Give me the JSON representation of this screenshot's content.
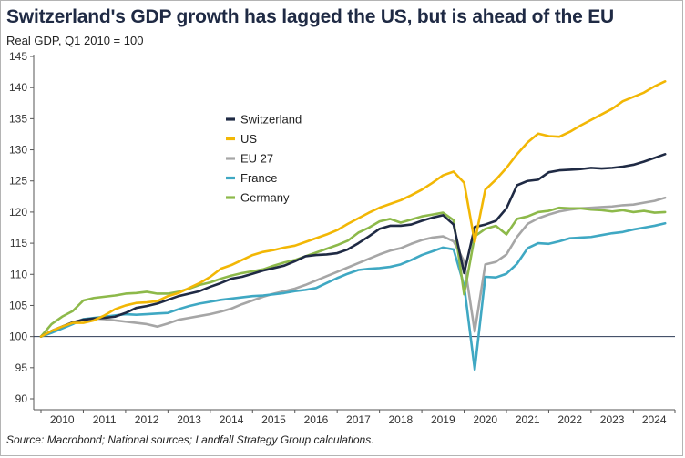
{
  "title": "Switzerland's GDP growth has lagged the US, but is ahead of the EU",
  "subtitle": "Real GDP, Q1 2010 = 100",
  "source": "Source: Macrobond; National sources; Landfall Strategy Group calculations.",
  "chart_data": {
    "type": "line",
    "title": "Switzerland's GDP growth has lagged the US, but is ahead of the EU",
    "ylabel": "Real GDP, Q1 2010 = 100",
    "ylim": [
      90,
      145
    ],
    "yticks": [
      90,
      95,
      100,
      105,
      110,
      115,
      120,
      125,
      130,
      135,
      140,
      145
    ],
    "xticks": [
      "2010",
      "2011",
      "2012",
      "2013",
      "2014",
      "2015",
      "2016",
      "2017",
      "2018",
      "2019",
      "2020",
      "2021",
      "2022",
      "2023",
      "2024"
    ],
    "xlim": [
      2010.0,
      2024.875
    ],
    "x_start": 2010.0,
    "x_step": 0.25,
    "reference_line": 100,
    "legend_position": "upper-left",
    "series": [
      {
        "name": "Switzerland",
        "color": "#1f2a44",
        "values": [
          100,
          100.9,
          101.6,
          102.3,
          102.7,
          102.9,
          103.0,
          103.2,
          103.8,
          104.6,
          104.9,
          105.3,
          105.9,
          106.5,
          106.9,
          107.3,
          108.0,
          108.6,
          109.3,
          109.6,
          110.1,
          110.6,
          111.0,
          111.4,
          112.1,
          112.9,
          113.1,
          113.2,
          113.4,
          114.0,
          115.0,
          116.1,
          117.3,
          117.8,
          117.8,
          118.0,
          118.6,
          119.1,
          119.5,
          118.0,
          110.2,
          117.6,
          118.0,
          118.6,
          120.6,
          124.3,
          125.0,
          125.2,
          126.4,
          126.7,
          126.8,
          126.9,
          127.1,
          127.0,
          127.1,
          127.3,
          127.6,
          128.1,
          128.7,
          129.3
        ]
      },
      {
        "name": "US",
        "color": "#f2b705",
        "values": [
          100,
          100.9,
          101.6,
          102.2,
          102.2,
          102.6,
          103.4,
          104.4,
          105.0,
          105.4,
          105.5,
          105.7,
          106.5,
          107.0,
          107.8,
          108.6,
          109.6,
          110.9,
          111.5,
          112.3,
          113.1,
          113.6,
          113.9,
          114.3,
          114.6,
          115.2,
          115.8,
          116.4,
          117.1,
          118.1,
          119.0,
          119.9,
          120.7,
          121.3,
          121.9,
          122.7,
          123.6,
          124.7,
          125.9,
          126.5,
          124.7,
          115.2,
          123.6,
          125.2,
          127.1,
          129.3,
          131.2,
          132.6,
          132.2,
          132.1,
          132.9,
          133.9,
          134.8,
          135.7,
          136.6,
          137.8,
          138.5,
          139.2,
          140.2,
          141.0
        ]
      },
      {
        "name": "EU 27",
        "color": "#a6a6a6",
        "values": [
          100,
          100.9,
          101.6,
          102.2,
          102.8,
          102.9,
          102.8,
          102.6,
          102.4,
          102.2,
          102.0,
          101.6,
          102.1,
          102.7,
          103.0,
          103.3,
          103.6,
          104.0,
          104.5,
          105.2,
          105.8,
          106.4,
          106.9,
          107.3,
          107.7,
          108.3,
          109.0,
          109.7,
          110.4,
          111.1,
          111.8,
          112.5,
          113.2,
          113.8,
          114.2,
          114.9,
          115.5,
          115.9,
          116.1,
          115.3,
          112.1,
          100.8,
          111.6,
          112.0,
          113.2,
          116.0,
          118.1,
          119.0,
          119.6,
          120.1,
          120.4,
          120.6,
          120.7,
          120.8,
          120.9,
          121.1,
          121.2,
          121.5,
          121.8,
          122.3
        ]
      },
      {
        "name": "France",
        "color": "#3fa8c3",
        "values": [
          100,
          100.6,
          101.3,
          102.0,
          102.8,
          103.0,
          103.2,
          103.4,
          103.6,
          103.5,
          103.6,
          103.7,
          103.8,
          104.4,
          104.9,
          105.3,
          105.6,
          105.9,
          106.1,
          106.3,
          106.5,
          106.6,
          106.8,
          107.0,
          107.3,
          107.5,
          107.8,
          108.6,
          109.4,
          110.1,
          110.7,
          110.9,
          111.0,
          111.2,
          111.6,
          112.3,
          113.1,
          113.7,
          114.3,
          114.0,
          108.2,
          94.7,
          109.6,
          109.5,
          110.1,
          111.7,
          114.2,
          115.0,
          114.9,
          115.3,
          115.8,
          115.9,
          116.0,
          116.3,
          116.6,
          116.8,
          117.2,
          117.5,
          117.8,
          118.2
        ]
      },
      {
        "name": "Germany",
        "color": "#8db94a",
        "values": [
          100,
          102.0,
          103.2,
          104.1,
          105.8,
          106.2,
          106.4,
          106.6,
          106.9,
          107.0,
          107.2,
          106.9,
          106.9,
          107.2,
          107.7,
          108.3,
          108.7,
          109.3,
          109.8,
          110.2,
          110.5,
          110.8,
          111.4,
          111.9,
          112.3,
          112.9,
          113.5,
          114.1,
          114.7,
          115.4,
          116.7,
          117.5,
          118.5,
          118.9,
          118.3,
          118.8,
          119.3,
          119.6,
          119.9,
          118.7,
          106.8,
          116.1,
          117.3,
          117.8,
          116.4,
          118.9,
          119.3,
          120.0,
          120.2,
          120.7,
          120.6,
          120.6,
          120.4,
          120.3,
          120.1,
          120.3,
          120.0,
          120.2,
          119.9,
          120.0
        ]
      }
    ]
  }
}
